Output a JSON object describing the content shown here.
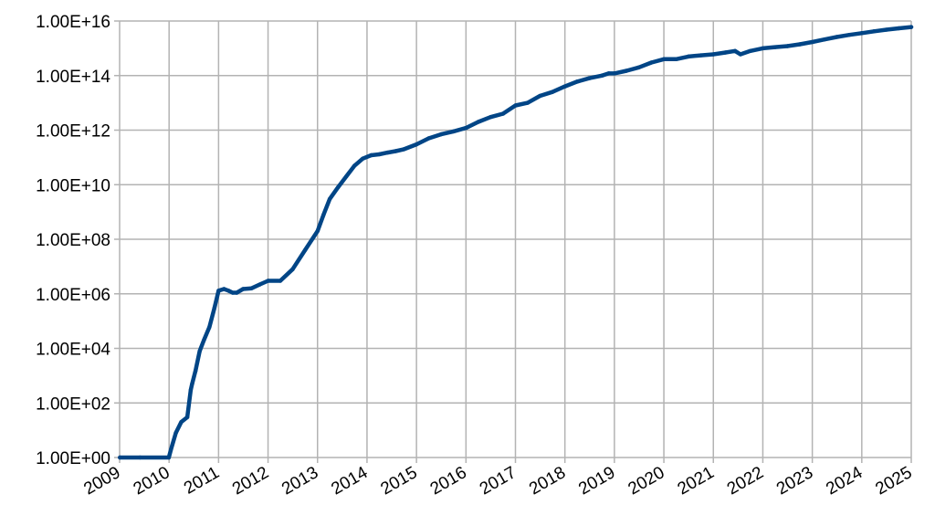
{
  "chart_data": {
    "type": "line",
    "title": "",
    "xlabel": "",
    "ylabel": "",
    "x_scale": "time",
    "y_scale": "log",
    "ylim": [
      1,
      1e+16
    ],
    "xlim": [
      "2009-01-01",
      "2025-01-01"
    ],
    "grid": true,
    "legend": "none",
    "x_tick_labels": [
      "2009",
      "2010",
      "2011",
      "2012",
      "2013",
      "2014",
      "2015",
      "2016",
      "2017",
      "2018",
      "2019",
      "2020",
      "2021",
      "2022",
      "2023",
      "2024",
      "2025"
    ],
    "y_tick_values": [
      1,
      100.0,
      10000.0,
      1000000.0,
      100000000.0,
      10000000000.0,
      1000000000000.0,
      100000000000000.0,
      1e+16
    ],
    "y_tick_labels": [
      "1.00E+00",
      "1.00E+02",
      "1.00E+04",
      "1.00E+06",
      "1.00E+08",
      "1.00E+10",
      "1.00E+12",
      "1.00E+14",
      "1.00E+16"
    ],
    "series": [
      {
        "color": "#004586",
        "x": [
          "2009-01-03",
          "2009-06-01",
          "2009-12-30",
          "2010-01-15",
          "2010-02-20",
          "2010-04-01",
          "2010-05-15",
          "2010-06-10",
          "2010-06-20",
          "2010-07-15",
          "2010-08-15",
          "2010-09-15",
          "2010-10-25",
          "2010-12-01",
          "2011-01-01",
          "2011-02-10",
          "2011-03-15",
          "2011-04-15",
          "2011-05-15",
          "2011-06-10",
          "2011-07-01",
          "2011-09-01",
          "2011-11-01",
          "2012-01-01",
          "2012-04-01",
          "2012-07-01",
          "2012-10-01",
          "2013-01-01",
          "2013-02-15",
          "2013-04-01",
          "2013-06-01",
          "2013-08-01",
          "2013-10-01",
          "2013-12-01",
          "2014-02-01",
          "2014-04-01",
          "2014-06-01",
          "2014-08-01",
          "2014-10-01",
          "2015-01-01",
          "2015-04-01",
          "2015-07-01",
          "2015-10-01",
          "2016-01-01",
          "2016-04-01",
          "2016-07-01",
          "2016-10-01",
          "2017-01-01",
          "2017-04-01",
          "2017-07-01",
          "2017-10-01",
          "2018-01-01",
          "2018-04-01",
          "2018-07-01",
          "2018-10-01",
          "2018-11-20",
          "2019-01-01",
          "2019-04-01",
          "2019-07-01",
          "2019-10-01",
          "2020-01-01",
          "2020-04-01",
          "2020-07-01",
          "2020-10-01",
          "2021-01-01",
          "2021-04-01",
          "2021-06-10",
          "2021-07-20",
          "2021-10-01",
          "2022-01-01",
          "2022-04-01",
          "2022-07-01",
          "2022-10-01",
          "2023-01-01",
          "2023-04-01",
          "2023-07-01",
          "2023-10-01",
          "2024-01-01",
          "2024-04-01",
          "2024-07-01",
          "2024-10-01",
          "2025-01-01"
        ],
        "y": [
          1,
          1,
          1,
          2,
          8,
          20,
          30,
          300,
          500,
          1500,
          8000,
          20000,
          60000,
          300000,
          1300000,
          1500000,
          1300000,
          1100000,
          1100000,
          1300000,
          1500000,
          1600000,
          2200000,
          3000000,
          3000000,
          8000000,
          40000000,
          200000000,
          800000000,
          3000000000,
          8000000000,
          20000000000,
          50000000000,
          90000000000,
          120000000000,
          130000000000,
          150000000000,
          170000000000,
          200000000000,
          300000000000,
          500000000000,
          700000000000,
          900000000000,
          1200000000000,
          2000000000000,
          3000000000000,
          4000000000000,
          8000000000000,
          10000000000000,
          18000000000000,
          25000000000000,
          40000000000000,
          60000000000000,
          80000000000000,
          100000000000000,
          120000000000000,
          120000000000000,
          150000000000000,
          200000000000000,
          300000000000000,
          400000000000000,
          400000000000000,
          500000000000000,
          550000000000000,
          600000000000000,
          700000000000000,
          800000000000000,
          600000000000000,
          800000000000000,
          1000000000000000,
          1100000000000000,
          1200000000000000,
          1400000000000000,
          1700000000000000,
          2100000000000000,
          2600000000000000,
          3100000000000000,
          3600000000000000,
          4200000000000000,
          4800000000000000,
          5400000000000000,
          6000000000000000
        ]
      }
    ]
  }
}
